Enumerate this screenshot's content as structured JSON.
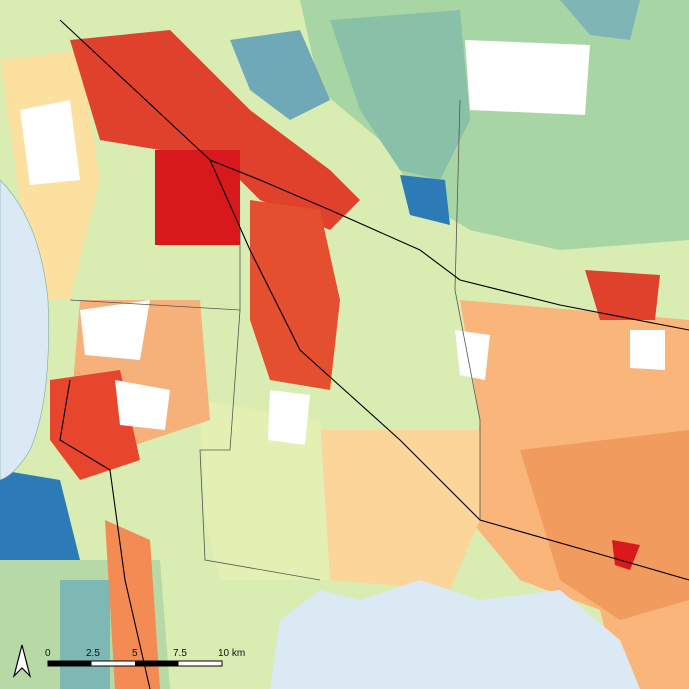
{
  "scale_bar": {
    "labels": [
      "0",
      "2.5",
      "5",
      "7.5",
      "10 km"
    ]
  }
}
